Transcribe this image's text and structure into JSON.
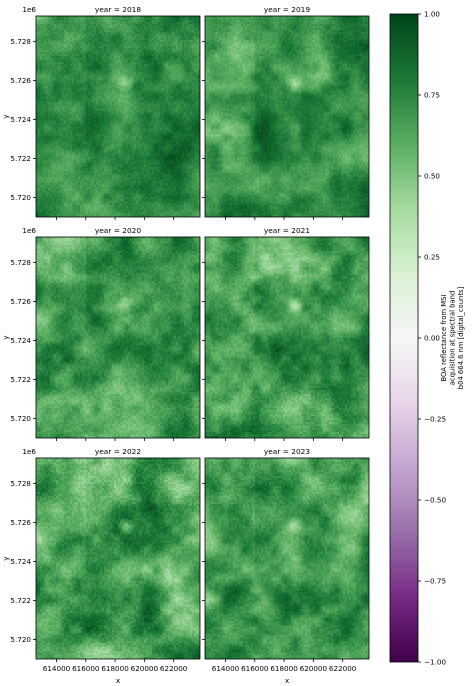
{
  "chart_data": {
    "type": "heatmap",
    "facet_label_prefix": "year = ",
    "panels": [
      {
        "year": "2018",
        "title": "year = 2018"
      },
      {
        "year": "2019",
        "title": "year = 2019"
      },
      {
        "year": "2020",
        "title": "year = 2020"
      },
      {
        "year": "2021",
        "title": "year = 2021"
      },
      {
        "year": "2022",
        "title": "year = 2022"
      },
      {
        "year": "2023",
        "title": "year = 2023"
      }
    ],
    "xlabel": "x",
    "ylabel": "y",
    "y_offset_label": "1e6",
    "xlim": [
      612600,
      623800
    ],
    "ylim": [
      5.719,
      5.7293
    ],
    "x_ticks": [
      614000,
      616000,
      618000,
      620000,
      622000
    ],
    "x_tick_labels": [
      "614000",
      "616000",
      "618000",
      "620000",
      "622000"
    ],
    "y_ticks": [
      5.72,
      5.722,
      5.724,
      5.726,
      5.728
    ],
    "y_tick_labels": [
      "5.720",
      "5.722",
      "5.724",
      "5.726",
      "5.728"
    ],
    "colorbar": {
      "label_lines": [
        "BOA reflectance from MSI",
        "acquisition at spectral band",
        "b04 664.6 nm [digital_counts]"
      ],
      "vmin": -1.0,
      "vmax": 1.0,
      "colormap": "PRGn",
      "ticks": [
        1.0,
        0.75,
        0.5,
        0.25,
        0.0,
        -0.25,
        -0.5,
        -0.75,
        -1.0
      ],
      "tick_labels": [
        "1.00",
        "0.75",
        "0.50",
        "0.25",
        "0.00",
        "−0.25",
        "−0.50",
        "−0.75",
        "−1.00"
      ]
    },
    "colors": {
      "dark_green": "#00441b",
      "mid_green": "#2e8b3e",
      "light_green": "#a6dba0",
      "white": "#f7f7f7",
      "light_purple": "#c2a5cf",
      "dark_purple": "#40004b"
    },
    "grid": false,
    "approx_value_range": [
      0.35,
      1.0
    ]
  }
}
